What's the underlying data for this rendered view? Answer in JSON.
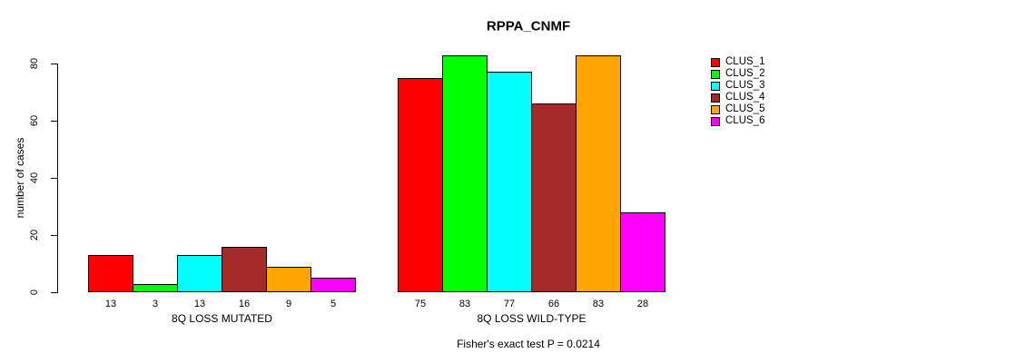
{
  "chart_data": {
    "type": "bar",
    "title": "RPPA_CNMF",
    "xlabel": "",
    "ylabel": "number of cases",
    "ylim": [
      0,
      80
    ],
    "yticks": [
      0,
      20,
      40,
      60,
      80
    ],
    "grid": false,
    "legend_position": "right-inside",
    "bar_border_color": "#000000",
    "show_value_labels": true,
    "categories": [
      "8Q LOSS MUTATED",
      "8Q LOSS WILD-TYPE"
    ],
    "series": [
      {
        "name": "CLUS_1",
        "color": "#FF0000",
        "values": [
          13,
          75
        ]
      },
      {
        "name": "CLUS_2",
        "color": "#00FF00",
        "values": [
          3,
          83
        ]
      },
      {
        "name": "CLUS_3",
        "color": "#00FFFF",
        "values": [
          13,
          77
        ]
      },
      {
        "name": "CLUS_4",
        "color": "#A52A2A",
        "values": [
          16,
          66
        ]
      },
      {
        "name": "CLUS_5",
        "color": "#FFA500",
        "values": [
          9,
          83
        ]
      },
      {
        "name": "CLUS_6",
        "color": "#FF00FF",
        "values": [
          5,
          28
        ]
      }
    ],
    "annotation": "Fisher's exact test P = 0.0214"
  }
}
